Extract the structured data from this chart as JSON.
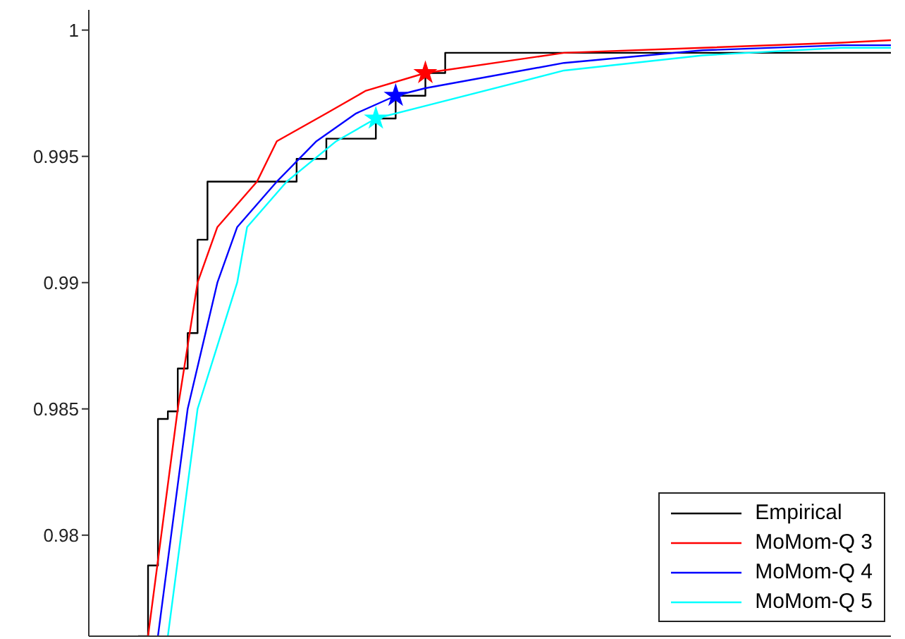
{
  "chart_data": {
    "type": "line",
    "categories": [
      null,
      null,
      null,
      null,
      null,
      null,
      null,
      null,
      null,
      null,
      null,
      null,
      null,
      null,
      null,
      null,
      null,
      null,
      null,
      null,
      null,
      null,
      null,
      null,
      null,
      null,
      null,
      null,
      null,
      null,
      null,
      null,
      null,
      null,
      null,
      null,
      null,
      null,
      null,
      null,
      null,
      null,
      null,
      null,
      null,
      null,
      null,
      null,
      null,
      null,
      null,
      null,
      null,
      null,
      null,
      null,
      null,
      null,
      null,
      null,
      null,
      null,
      null,
      null,
      null,
      null,
      null,
      null,
      null,
      null,
      null,
      null,
      null,
      null,
      null,
      null,
      null
    ],
    "ylim": [
      0.976,
      1.0008
    ],
    "yticks": [
      0.98,
      0.985,
      0.99,
      0.995,
      1
    ],
    "tick_labels": "y",
    "legend": "bottom right",
    "series": [
      {
        "name": "Empirical",
        "type": "step",
        "color": "#000000",
        "values": [
          0.976,
          0.9788,
          0.9846,
          0.9849,
          0.9866,
          0.988,
          0.9917,
          0.994,
          0.994,
          0.994,
          0.994,
          0.994,
          0.994,
          0.994,
          0.994,
          0.994,
          0.9949,
          0.9949,
          0.9949,
          0.9957,
          0.9957,
          0.9957,
          0.9957,
          0.9957,
          0.9965,
          0.9965,
          0.9974,
          0.9974,
          0.9974,
          0.9983,
          0.9983,
          0.9991,
          0.9991,
          0.9991,
          0.9991,
          0.9991,
          0.9991,
          0.9991,
          0.9991,
          0.9991,
          0.9991,
          0.9991,
          0.9991,
          0.9991,
          0.9991,
          0.9991,
          0.9991,
          0.9991,
          0.9991,
          0.9991,
          0.9991,
          0.9991,
          0.9991,
          0.9991,
          0.9991,
          0.9991,
          0.9991,
          0.9991,
          0.9991,
          0.9991,
          0.9991,
          0.9991,
          0.9991,
          0.9991,
          0.9991,
          0.9991,
          0.9991,
          0.9991,
          0.9991,
          0.9991,
          0.9991,
          0.9991,
          0.9991,
          0.9991,
          0.9991,
          0.9991,
          0.9991
        ]
      },
      {
        "name": "MoMom-Q 3",
        "type": "line",
        "color": "#ff0000",
        "values": [
          null,
          0.976,
          null,
          null,
          0.985,
          null,
          0.99,
          null,
          0.9922,
          null,
          null,
          null,
          0.994,
          null,
          0.9956,
          null,
          null,
          null,
          null,
          0.9967,
          null,
          null,
          null,
          0.9976,
          null,
          null,
          null,
          null,
          null,
          0.9983,
          null,
          null,
          null,
          null,
          null,
          null,
          null,
          null,
          null,
          null,
          null,
          null,
          null,
          0.9991,
          null,
          null,
          null,
          null,
          null,
          null,
          null,
          null,
          null,
          null,
          null,
          null,
          null,
          0.9993,
          null,
          null,
          null,
          null,
          null,
          null,
          null,
          null,
          null,
          null,
          null,
          null,
          null,
          0.9995,
          null,
          null,
          null,
          null,
          0.9996
        ]
      },
      {
        "name": "MoMom-Q 4",
        "type": "line",
        "color": "#0000ff",
        "values": [
          null,
          null,
          0.976,
          null,
          null,
          0.985,
          null,
          null,
          0.99,
          null,
          0.9922,
          null,
          null,
          null,
          0.994,
          null,
          null,
          null,
          0.9956,
          null,
          null,
          null,
          0.9967,
          null,
          null,
          null,
          0.9974,
          null,
          null,
          0.9977,
          null,
          null,
          null,
          null,
          null,
          null,
          null,
          null,
          null,
          null,
          null,
          null,
          null,
          0.9987,
          null,
          null,
          null,
          null,
          null,
          null,
          null,
          null,
          null,
          null,
          null,
          null,
          null,
          0.9992,
          null,
          null,
          null,
          null,
          null,
          null,
          null,
          null,
          null,
          null,
          null,
          null,
          null,
          0.9994,
          null,
          null,
          null,
          null,
          0.9994
        ]
      },
      {
        "name": "MoMom-Q 5",
        "type": "line",
        "color": "#00ffff",
        "values": [
          null,
          null,
          null,
          0.976,
          null,
          null,
          0.985,
          null,
          null,
          null,
          0.99,
          0.9922,
          null,
          null,
          null,
          0.994,
          null,
          null,
          null,
          null,
          0.9956,
          null,
          null,
          null,
          0.9965,
          null,
          null,
          null,
          null,
          0.997,
          null,
          null,
          null,
          null,
          null,
          null,
          null,
          null,
          null,
          null,
          null,
          null,
          null,
          0.9984,
          null,
          null,
          null,
          null,
          null,
          null,
          null,
          null,
          null,
          null,
          null,
          null,
          null,
          0.999,
          null,
          null,
          null,
          null,
          null,
          null,
          null,
          null,
          null,
          null,
          null,
          null,
          null,
          0.9993,
          null,
          null,
          null,
          null,
          0.9993
        ]
      },
      {
        "type": "scatter",
        "marker": "star",
        "color": "#ff0000",
        "values": [
          null,
          null,
          null,
          null,
          null,
          null,
          null,
          null,
          null,
          null,
          null,
          null,
          null,
          null,
          null,
          null,
          null,
          null,
          null,
          null,
          null,
          null,
          null,
          null,
          null,
          null,
          null,
          null,
          null,
          0.9983,
          null,
          null,
          null,
          null,
          null,
          null,
          null,
          null,
          null,
          null,
          null,
          null,
          null,
          null,
          null,
          null,
          null,
          null,
          null,
          null,
          null,
          null,
          null,
          null,
          null,
          null,
          null,
          null,
          null,
          null,
          null,
          null,
          null,
          null,
          null,
          null,
          null,
          null,
          null,
          null,
          null,
          null,
          null,
          null,
          null,
          null,
          null
        ]
      },
      {
        "type": "scatter",
        "marker": "star",
        "color": "#0000ff",
        "values": [
          null,
          null,
          null,
          null,
          null,
          null,
          null,
          null,
          null,
          null,
          null,
          null,
          null,
          null,
          null,
          null,
          null,
          null,
          null,
          null,
          null,
          null,
          null,
          null,
          null,
          null,
          0.9974,
          null,
          null,
          null,
          null,
          null,
          null,
          null,
          null,
          null,
          null,
          null,
          null,
          null,
          null,
          null,
          null,
          null,
          null,
          null,
          null,
          null,
          null,
          null,
          null,
          null,
          null,
          null,
          null,
          null,
          null,
          null,
          null,
          null,
          null,
          null,
          null,
          null,
          null,
          null,
          null,
          null,
          null,
          null,
          null,
          null,
          null,
          null,
          null,
          null,
          null
        ]
      },
      {
        "type": "scatter",
        "marker": "star",
        "color": "#00ffff",
        "values": [
          null,
          null,
          null,
          null,
          null,
          null,
          null,
          null,
          null,
          null,
          null,
          null,
          null,
          null,
          null,
          null,
          null,
          null,
          null,
          null,
          null,
          null,
          null,
          null,
          0.9965,
          null,
          null,
          null,
          null,
          null,
          null,
          null,
          null,
          null,
          null,
          null,
          null,
          null,
          null,
          null,
          null,
          null,
          null,
          null,
          null,
          null,
          null,
          null,
          null,
          null,
          null,
          null,
          null,
          null,
          null,
          null,
          null,
          null,
          null,
          null,
          null,
          null,
          null,
          null,
          null,
          null,
          null,
          null,
          null,
          null,
          null,
          null,
          null,
          null,
          null,
          null,
          null
        ]
      }
    ]
  }
}
